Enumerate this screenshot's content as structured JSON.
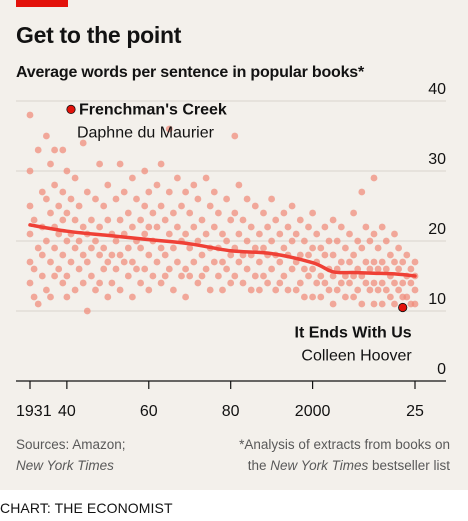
{
  "header": {
    "title": "Get to the point",
    "subtitle": "Average words per sentence in popular books*"
  },
  "footer": {
    "sources_line1": "Sources: Amazon;",
    "sources_line2": "New York Times",
    "note_line1": "*Analysis of extracts from books on",
    "note_line2_pre": "the ",
    "note_line2_italic": "New York Times",
    "note_line2_post": " bestseller list",
    "credit": "CHART: THE ECONOMIST"
  },
  "colors": {
    "background": "#f3f0eb",
    "dots": "#f08a78",
    "trend": "#ef4036",
    "highlight": "#e3120b",
    "text": "#121212",
    "muted": "#595959",
    "grid": "#d9d3cc"
  },
  "chart_data": {
    "type": "scatter",
    "title": "Get to the point",
    "subtitle": "Average words per sentence in popular books*",
    "xlabel": "",
    "ylabel": "",
    "xlim": [
      1929,
      2027
    ],
    "ylim": [
      0,
      40
    ],
    "y_ticks": [
      0,
      10,
      20,
      30,
      40
    ],
    "y_tick_labels": [
      "0",
      "10",
      "20",
      "30",
      "40"
    ],
    "x_ticks": [
      1931,
      1940,
      1960,
      1980,
      2000,
      2025
    ],
    "x_tick_labels": [
      "1931",
      "40",
      "60",
      "80",
      "2000",
      "25"
    ],
    "grid": true,
    "trend": {
      "x": [
        1931,
        1940,
        1950,
        1960,
        1970,
        1980,
        1990,
        2000,
        2005,
        2010,
        2015,
        2020,
        2025
      ],
      "y": [
        22.3,
        21.4,
        20.8,
        20.2,
        19.6,
        18.6,
        18.2,
        16.9,
        15.6,
        15.5,
        15.4,
        15.3,
        15.0
      ]
    },
    "highlights": [
      {
        "name": "Frenchman's Creek",
        "author": "Daphne du Maurier",
        "x": 1941,
        "y": 38.8
      },
      {
        "name": "It Ends With Us",
        "author": "Colleen Hoover",
        "x": 2022,
        "y": 10.5
      }
    ],
    "points": [
      [
        1931,
        38
      ],
      [
        1931,
        30
      ],
      [
        1931,
        25
      ],
      [
        1931,
        21
      ],
      [
        1931,
        17
      ],
      [
        1931,
        14
      ],
      [
        1932,
        23
      ],
      [
        1932,
        16
      ],
      [
        1932,
        12
      ],
      [
        1933,
        33
      ],
      [
        1933,
        19
      ],
      [
        1933,
        11
      ],
      [
        1934,
        27
      ],
      [
        1934,
        22
      ],
      [
        1934,
        18
      ],
      [
        1934,
        15
      ],
      [
        1935,
        35
      ],
      [
        1935,
        26
      ],
      [
        1935,
        20
      ],
      [
        1935,
        13
      ],
      [
        1936,
        31
      ],
      [
        1936,
        24
      ],
      [
        1936,
        17
      ],
      [
        1936,
        12
      ],
      [
        1937,
        33
      ],
      [
        1937,
        28
      ],
      [
        1937,
        22
      ],
      [
        1937,
        19
      ],
      [
        1937,
        15
      ],
      [
        1938,
        25
      ],
      [
        1938,
        21
      ],
      [
        1938,
        16
      ],
      [
        1939,
        33
      ],
      [
        1939,
        27
      ],
      [
        1939,
        23
      ],
      [
        1939,
        18
      ],
      [
        1939,
        14
      ],
      [
        1940,
        30
      ],
      [
        1940,
        24
      ],
      [
        1940,
        20
      ],
      [
        1940,
        15
      ],
      [
        1940,
        12
      ],
      [
        1941,
        26
      ],
      [
        1941,
        21
      ],
      [
        1941,
        17
      ],
      [
        1942,
        29
      ],
      [
        1942,
        23
      ],
      [
        1942,
        19
      ],
      [
        1942,
        13
      ],
      [
        1943,
        25
      ],
      [
        1943,
        20
      ],
      [
        1943,
        16
      ],
      [
        1944,
        34
      ],
      [
        1944,
        22
      ],
      [
        1944,
        18
      ],
      [
        1944,
        14
      ],
      [
        1945,
        27
      ],
      [
        1945,
        21
      ],
      [
        1945,
        17
      ],
      [
        1945,
        10
      ],
      [
        1946,
        23
      ],
      [
        1946,
        19
      ],
      [
        1946,
        15
      ],
      [
        1947,
        26
      ],
      [
        1947,
        20
      ],
      [
        1947,
        13
      ],
      [
        1948,
        31
      ],
      [
        1948,
        22
      ],
      [
        1948,
        18
      ],
      [
        1948,
        14
      ],
      [
        1949,
        25
      ],
      [
        1949,
        19
      ],
      [
        1949,
        16
      ],
      [
        1950,
        28
      ],
      [
        1950,
        23
      ],
      [
        1950,
        17
      ],
      [
        1950,
        12
      ],
      [
        1951,
        21
      ],
      [
        1951,
        18
      ],
      [
        1951,
        14
      ],
      [
        1952,
        26
      ],
      [
        1952,
        20
      ],
      [
        1952,
        16
      ],
      [
        1953,
        31
      ],
      [
        1953,
        23
      ],
      [
        1953,
        18
      ],
      [
        1953,
        13
      ],
      [
        1954,
        27
      ],
      [
        1954,
        21
      ],
      [
        1954,
        17
      ],
      [
        1955,
        24
      ],
      [
        1955,
        19
      ],
      [
        1955,
        15
      ],
      [
        1956,
        29
      ],
      [
        1956,
        22
      ],
      [
        1956,
        17
      ],
      [
        1956,
        12
      ],
      [
        1957,
        26
      ],
      [
        1957,
        20
      ],
      [
        1957,
        16
      ],
      [
        1958,
        23
      ],
      [
        1958,
        19
      ],
      [
        1958,
        14
      ],
      [
        1959,
        30
      ],
      [
        1959,
        25
      ],
      [
        1959,
        21
      ],
      [
        1959,
        16
      ],
      [
        1960,
        27
      ],
      [
        1960,
        22
      ],
      [
        1960,
        18
      ],
      [
        1960,
        13
      ],
      [
        1961,
        24
      ],
      [
        1961,
        20
      ],
      [
        1961,
        15
      ],
      [
        1962,
        28
      ],
      [
        1962,
        22
      ],
      [
        1962,
        17
      ],
      [
        1963,
        31
      ],
      [
        1963,
        25
      ],
      [
        1963,
        19
      ],
      [
        1963,
        14
      ],
      [
        1964,
        23
      ],
      [
        1964,
        18
      ],
      [
        1964,
        15
      ],
      [
        1965,
        36
      ],
      [
        1965,
        27
      ],
      [
        1965,
        21
      ],
      [
        1965,
        16
      ],
      [
        1966,
        24
      ],
      [
        1966,
        19
      ],
      [
        1966,
        13
      ],
      [
        1967,
        29
      ],
      [
        1967,
        22
      ],
      [
        1967,
        17
      ],
      [
        1968,
        25
      ],
      [
        1968,
        20
      ],
      [
        1968,
        15
      ],
      [
        1969,
        27
      ],
      [
        1969,
        21
      ],
      [
        1969,
        16
      ],
      [
        1969,
        12
      ],
      [
        1970,
        24
      ],
      [
        1970,
        19
      ],
      [
        1970,
        15
      ],
      [
        1971,
        28
      ],
      [
        1971,
        22
      ],
      [
        1971,
        17
      ],
      [
        1972,
        26
      ],
      [
        1972,
        20
      ],
      [
        1972,
        14
      ],
      [
        1973,
        23
      ],
      [
        1973,
        18
      ],
      [
        1973,
        15
      ],
      [
        1974,
        29
      ],
      [
        1974,
        21
      ],
      [
        1974,
        16
      ],
      [
        1975,
        25
      ],
      [
        1975,
        19
      ],
      [
        1975,
        13
      ],
      [
        1976,
        27
      ],
      [
        1976,
        22
      ],
      [
        1976,
        17
      ],
      [
        1977,
        24
      ],
      [
        1977,
        19
      ],
      [
        1977,
        15
      ],
      [
        1978,
        21
      ],
      [
        1978,
        17
      ],
      [
        1978,
        13
      ],
      [
        1979,
        26
      ],
      [
        1979,
        20
      ],
      [
        1979,
        16
      ],
      [
        1980,
        23
      ],
      [
        1980,
        18
      ],
      [
        1980,
        14
      ],
      [
        1981,
        35
      ],
      [
        1981,
        24
      ],
      [
        1981,
        19
      ],
      [
        1981,
        15
      ],
      [
        1982,
        28
      ],
      [
        1982,
        21
      ],
      [
        1982,
        17
      ],
      [
        1983,
        23
      ],
      [
        1983,
        18
      ],
      [
        1983,
        14
      ],
      [
        1984,
        26
      ],
      [
        1984,
        20
      ],
      [
        1984,
        16
      ],
      [
        1985,
        22
      ],
      [
        1985,
        18
      ],
      [
        1985,
        13
      ],
      [
        1986,
        25
      ],
      [
        1986,
        19
      ],
      [
        1986,
        15
      ],
      [
        1987,
        21
      ],
      [
        1987,
        17
      ],
      [
        1987,
        13
      ],
      [
        1988,
        24
      ],
      [
        1988,
        19
      ],
      [
        1988,
        15
      ],
      [
        1989,
        22
      ],
      [
        1989,
        18
      ],
      [
        1989,
        14
      ],
      [
        1990,
        26
      ],
      [
        1990,
        20
      ],
      [
        1990,
        16
      ],
      [
        1991,
        23
      ],
      [
        1991,
        18
      ],
      [
        1991,
        13
      ],
      [
        1992,
        21
      ],
      [
        1992,
        17
      ],
      [
        1992,
        14
      ],
      [
        1993,
        24
      ],
      [
        1993,
        19
      ],
      [
        1993,
        15
      ],
      [
        1994,
        22
      ],
      [
        1994,
        18
      ],
      [
        1994,
        13
      ],
      [
        1995,
        25
      ],
      [
        1995,
        20
      ],
      [
        1995,
        16
      ],
      [
        1996,
        21
      ],
      [
        1996,
        17
      ],
      [
        1996,
        13
      ],
      [
        1997,
        23
      ],
      [
        1997,
        18
      ],
      [
        1997,
        14
      ],
      [
        1998,
        20
      ],
      [
        1998,
        16
      ],
      [
        1998,
        12
      ],
      [
        1999,
        22
      ],
      [
        1999,
        18
      ],
      [
        1999,
        15
      ],
      [
        2000,
        24
      ],
      [
        2000,
        19
      ],
      [
        2000,
        16
      ],
      [
        2000,
        12
      ],
      [
        2001,
        21
      ],
      [
        2001,
        17
      ],
      [
        2001,
        14
      ],
      [
        2002,
        19
      ],
      [
        2002,
        15
      ],
      [
        2002,
        12
      ],
      [
        2003,
        22
      ],
      [
        2003,
        18
      ],
      [
        2003,
        14
      ],
      [
        2004,
        20
      ],
      [
        2004,
        16
      ],
      [
        2004,
        13
      ],
      [
        2005,
        23
      ],
      [
        2005,
        18
      ],
      [
        2005,
        15
      ],
      [
        2005,
        11
      ],
      [
        2006,
        20
      ],
      [
        2006,
        16
      ],
      [
        2006,
        13
      ],
      [
        2007,
        22
      ],
      [
        2007,
        17
      ],
      [
        2007,
        14
      ],
      [
        2008,
        19
      ],
      [
        2008,
        15
      ],
      [
        2008,
        12
      ],
      [
        2009,
        21
      ],
      [
        2009,
        17
      ],
      [
        2009,
        14
      ],
      [
        2010,
        24
      ],
      [
        2010,
        18
      ],
      [
        2010,
        15
      ],
      [
        2010,
        12
      ],
      [
        2011,
        20
      ],
      [
        2011,
        16
      ],
      [
        2011,
        13
      ],
      [
        2012,
        27
      ],
      [
        2012,
        19
      ],
      [
        2012,
        15
      ],
      [
        2012,
        11
      ],
      [
        2013,
        22
      ],
      [
        2013,
        17
      ],
      [
        2013,
        14
      ],
      [
        2014,
        20
      ],
      [
        2014,
        16
      ],
      [
        2014,
        13
      ],
      [
        2015,
        29
      ],
      [
        2015,
        21
      ],
      [
        2015,
        17
      ],
      [
        2015,
        14
      ],
      [
        2015,
        11
      ],
      [
        2016,
        19
      ],
      [
        2016,
        16
      ],
      [
        2016,
        13
      ],
      [
        2017,
        22
      ],
      [
        2017,
        17
      ],
      [
        2017,
        14
      ],
      [
        2017,
        11
      ],
      [
        2018,
        20
      ],
      [
        2018,
        16
      ],
      [
        2018,
        13
      ],
      [
        2019,
        18
      ],
      [
        2019,
        15
      ],
      [
        2019,
        12
      ],
      [
        2020,
        21
      ],
      [
        2020,
        17
      ],
      [
        2020,
        14
      ],
      [
        2020,
        11
      ],
      [
        2021,
        19
      ],
      [
        2021,
        16
      ],
      [
        2021,
        13
      ],
      [
        2022,
        17
      ],
      [
        2022,
        14
      ],
      [
        2022,
        12
      ],
      [
        2023,
        18
      ],
      [
        2023,
        15
      ],
      [
        2023,
        12
      ],
      [
        2024,
        16
      ],
      [
        2024,
        14
      ],
      [
        2024,
        11
      ],
      [
        2025,
        17
      ],
      [
        2025,
        15
      ],
      [
        2025,
        13
      ],
      [
        2025,
        11
      ]
    ]
  }
}
